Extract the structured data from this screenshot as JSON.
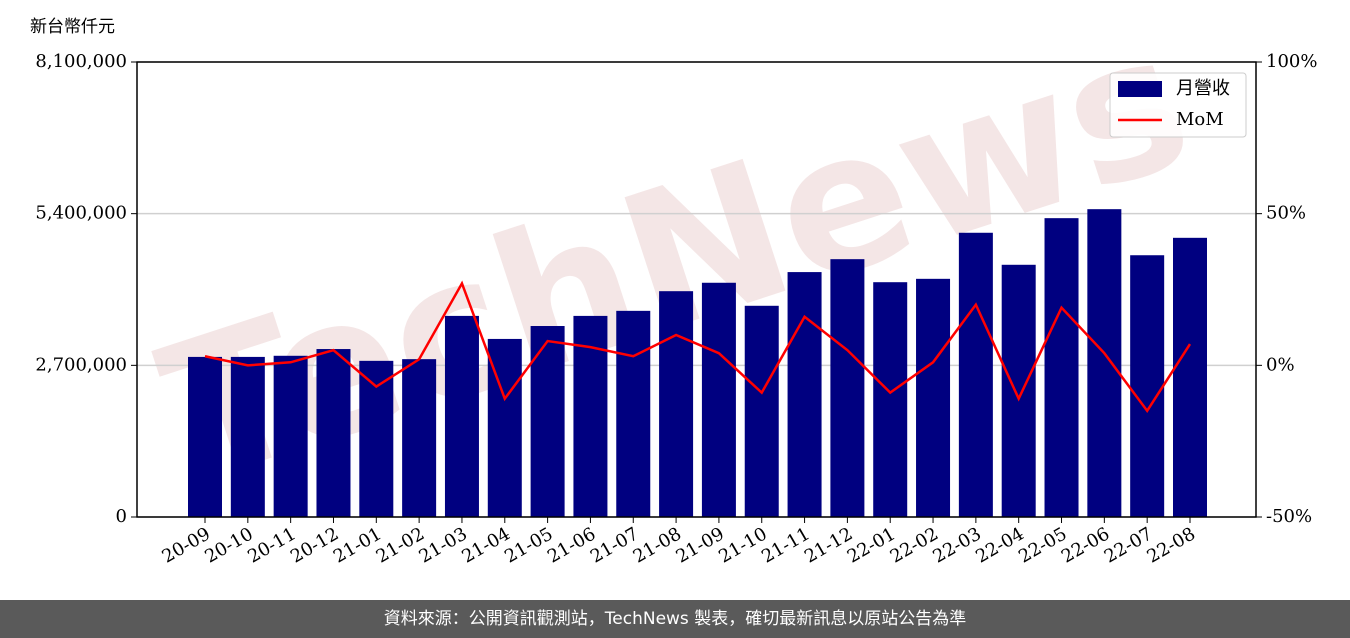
{
  "chart_data": {
    "type": "bar-line",
    "y_label": "新台幣仟元",
    "watermark": "TechNews",
    "categories": [
      "20-09",
      "20-10",
      "20-11",
      "20-12",
      "21-01",
      "21-02",
      "21-03",
      "21-04",
      "21-05",
      "21-06",
      "21-07",
      "21-08",
      "21-09",
      "21-10",
      "21-11",
      "21-12",
      "22-01",
      "22-02",
      "22-03",
      "22-04",
      "22-05",
      "22-06",
      "22-07",
      "22-08"
    ],
    "series": [
      {
        "name": "月營收",
        "color": "#000080",
        "kind": "bar",
        "values": [
          2850000,
          2850000,
          2870000,
          2990000,
          2780000,
          2810000,
          3580000,
          3170000,
          3400000,
          3580000,
          3670000,
          4020000,
          4170000,
          3760000,
          4360000,
          4590000,
          4180000,
          4240000,
          5060000,
          4490000,
          5320000,
          5480000,
          4660000,
          4970000
        ]
      },
      {
        "name": "MoM",
        "color": "#ff0000",
        "kind": "line",
        "axis": "y2",
        "values": [
          3,
          0,
          1,
          5,
          -7,
          2,
          27,
          -11,
          8,
          6,
          3,
          10,
          4,
          -9,
          16,
          5,
          -9,
          1,
          20,
          -11,
          19,
          4,
          -15,
          7
        ]
      }
    ],
    "ylim": [
      0,
      8100000
    ],
    "yticks": [
      0,
      {
        "value": 2700000,
        "label": "2,700,000"
      },
      {
        "value": 5400000,
        "label": "5,400,000"
      },
      {
        "value": 8100000,
        "label": "8,100,000"
      }
    ],
    "y2lim": [
      -50,
      100
    ],
    "y2ticks": [
      {
        "value": -50,
        "label": "-50%"
      },
      {
        "value": 0,
        "label": "0%"
      },
      {
        "value": 50,
        "label": "50%"
      },
      {
        "value": 100,
        "label": "100%"
      }
    ],
    "grid": true,
    "legend": "upper right"
  },
  "footer": "資料來源：公開資訊觀測站，TechNews 製表，確切最新訊息以原站公告為準"
}
